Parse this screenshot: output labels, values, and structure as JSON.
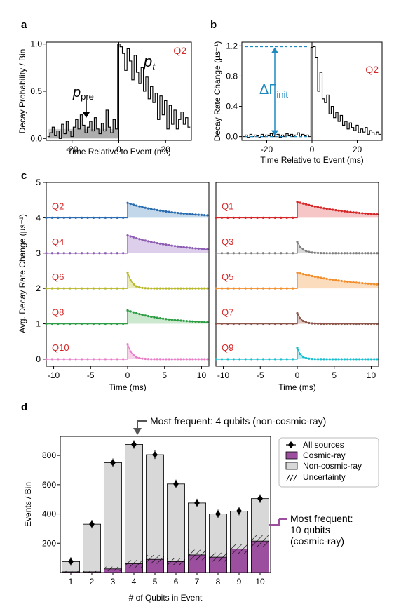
{
  "panel_labels": {
    "a": "a",
    "b": "b",
    "c": "c",
    "d": "d"
  },
  "chart_data": [
    {
      "panel": "a",
      "type": "step",
      "xlabel": "Time Relative to Event (ms)",
      "ylabel": "Decay Probability / Bin",
      "tag": "Q2",
      "xlim": [
        -31,
        31
      ],
      "ylim": [
        -0.02,
        1.02
      ],
      "xticks": [
        -20,
        0,
        20
      ],
      "yticks": [
        0.0,
        0.5,
        1.0
      ],
      "xticklabels": [
        "-20",
        "0",
        "20"
      ],
      "yticklabels": [
        "0.0",
        "0.5",
        "1.0"
      ],
      "annotations": {
        "p_pre": "p",
        "p_pre_sub": "pre",
        "p_t": "p",
        "p_t_sub": "t"
      },
      "p_pre_level": 0.1,
      "x": [
        -30,
        -29,
        -28,
        -27,
        -26,
        -25,
        -24,
        -23,
        -22,
        -21,
        -20,
        -19,
        -18,
        -17,
        -16,
        -15,
        -14,
        -13,
        -12,
        -11,
        -10,
        -9,
        -8,
        -7,
        -6,
        -5,
        -4,
        -3,
        -2,
        -1,
        0,
        1,
        2,
        3,
        4,
        5,
        6,
        7,
        8,
        9,
        10,
        11,
        12,
        13,
        14,
        15,
        16,
        17,
        18,
        19,
        20,
        21,
        22,
        23,
        24,
        25,
        26,
        27,
        28,
        29,
        30
      ],
      "values": [
        0.02,
        0.06,
        0.12,
        0.03,
        0.08,
        0.0,
        0.15,
        0.05,
        0.18,
        0.08,
        0.02,
        0.12,
        0.2,
        0.1,
        0.25,
        0.14,
        0.06,
        0.12,
        0.18,
        0.08,
        0.22,
        0.1,
        0.05,
        0.16,
        0.08,
        0.3,
        0.12,
        0.06,
        0.2,
        0.1,
        1.0,
        0.97,
        0.9,
        0.72,
        0.95,
        0.82,
        0.62,
        0.88,
        0.7,
        0.58,
        0.75,
        0.5,
        0.65,
        0.42,
        0.55,
        0.38,
        0.48,
        0.2,
        0.45,
        0.25,
        0.4,
        0.1,
        0.35,
        0.15,
        0.3,
        0.1,
        0.2,
        0.28,
        0.15,
        0.22,
        0.12
      ]
    },
    {
      "panel": "b",
      "type": "step",
      "xlabel": "Time Relative to Event (ms)",
      "ylabel": "Decay Rate Change (µs⁻¹)",
      "tag": "Q2",
      "xlim": [
        -31,
        31
      ],
      "ylim": [
        -0.05,
        1.25
      ],
      "xticks": [
        -20,
        0,
        20
      ],
      "yticks": [
        0.0,
        0.4,
        0.8,
        1.2
      ],
      "xticklabels": [
        "-20",
        "0",
        "20"
      ],
      "yticklabels": [
        "0.0",
        "0.4",
        "0.8",
        "1.2"
      ],
      "annotation": "ΔΓ",
      "annotation_sub": "init",
      "delta_gamma_init": 1.19,
      "x": [
        -30,
        -29,
        -28,
        -27,
        -26,
        -25,
        -24,
        -23,
        -22,
        -21,
        -20,
        -19,
        -18,
        -17,
        -16,
        -15,
        -14,
        -13,
        -12,
        -11,
        -10,
        -9,
        -8,
        -7,
        -6,
        -5,
        -4,
        -3,
        -2,
        -1,
        0,
        1,
        2,
        3,
        4,
        5,
        6,
        7,
        8,
        9,
        10,
        11,
        12,
        13,
        14,
        15,
        16,
        17,
        18,
        19,
        20,
        21,
        22,
        23,
        24,
        25,
        26,
        27,
        28,
        29,
        30
      ],
      "values": [
        0.0,
        0.02,
        -0.01,
        0.03,
        0.0,
        0.02,
        0.01,
        -0.01,
        0.03,
        0.0,
        0.02,
        0.01,
        0.04,
        0.0,
        0.02,
        0.03,
        -0.01,
        0.02,
        0.0,
        0.04,
        0.01,
        0.03,
        0.0,
        0.02,
        0.05,
        0.0,
        0.03,
        0.01,
        0.02,
        0.0,
        1.18,
        1.19,
        1.05,
        0.6,
        0.85,
        0.5,
        0.45,
        0.55,
        0.3,
        0.4,
        0.25,
        0.32,
        0.2,
        0.28,
        0.15,
        0.2,
        0.1,
        0.18,
        0.12,
        0.08,
        0.15,
        0.05,
        0.1,
        0.06,
        0.12,
        0.03,
        0.08,
        0.05,
        0.02,
        0.06,
        0.03
      ]
    },
    {
      "panel": "c",
      "type": "line",
      "ylabel": "Avg. Decay Rate Change (µs⁻¹)",
      "xlabel": "Time (ms)",
      "xlim": [
        -11,
        11
      ],
      "ylim": [
        -0.2,
        5
      ],
      "xticks": [
        -10,
        -5,
        0,
        5,
        10
      ],
      "yticks": [
        0,
        1,
        2,
        3,
        4,
        5
      ],
      "xticklabels": [
        "-10",
        "-5",
        "0",
        "5",
        "10"
      ],
      "yticklabels": [
        "0",
        "1",
        "2",
        "3",
        "4",
        "5"
      ],
      "subplots": [
        {
          "series": [
            {
              "name": "Q2",
              "offset": 4,
              "amplitude": 0.42,
              "tau_ms": 6.0,
              "color": "#2b6cb0",
              "fill": "#b3cde3"
            },
            {
              "name": "Q4",
              "offset": 3,
              "amplitude": 0.5,
              "tau_ms": 7.0,
              "color": "#8e5cb5",
              "fill": "#d4c3e6"
            },
            {
              "name": "Q6",
              "offset": 2,
              "amplitude": 0.45,
              "tau_ms": 0.6,
              "color": "#b8b82a",
              "fill": "#e6e6a8"
            },
            {
              "name": "Q8",
              "offset": 1,
              "amplitude": 0.38,
              "tau_ms": 5.0,
              "color": "#2e9e45",
              "fill": "#bfe3c4"
            },
            {
              "name": "Q10",
              "offset": 0,
              "amplitude": 0.42,
              "tau_ms": 0.6,
              "color": "#e87cc8",
              "fill": "#f6c9e6"
            }
          ]
        },
        {
          "series": [
            {
              "name": "Q1",
              "offset": 4,
              "amplitude": 0.45,
              "tau_ms": 7.0,
              "color": "#d62728",
              "fill": "#f4b6b6"
            },
            {
              "name": "Q3",
              "offset": 3,
              "amplitude": 0.32,
              "tau_ms": 0.7,
              "color": "#7f7f7f",
              "fill": "#d0d0d0"
            },
            {
              "name": "Q5",
              "offset": 2,
              "amplitude": 0.45,
              "tau_ms": 8.0,
              "color": "#f28e2b",
              "fill": "#fad3ad"
            },
            {
              "name": "Q7",
              "offset": 1,
              "amplitude": 0.3,
              "tau_ms": 0.6,
              "color": "#8c564b",
              "fill": "#d8b8b0"
            },
            {
              "name": "Q9",
              "offset": 0,
              "amplitude": 0.32,
              "tau_ms": 0.5,
              "color": "#17becf",
              "fill": "#a8e6ee"
            }
          ]
        }
      ]
    },
    {
      "panel": "d",
      "type": "bar",
      "xlabel": "# of Qubits in Event",
      "ylabel": "Events / Bin",
      "categories": [
        "1",
        "2",
        "3",
        "4",
        "5",
        "6",
        "7",
        "8",
        "9",
        "10"
      ],
      "ylim": [
        0,
        930
      ],
      "yticks": [
        200,
        400,
        600,
        800
      ],
      "yticklabels": [
        "200",
        "400",
        "600",
        "800"
      ],
      "series": [
        {
          "name": "All sources",
          "values": [
            75,
            330,
            750,
            875,
            805,
            605,
            475,
            400,
            420,
            505
          ]
        },
        {
          "name": "Cosmic-ray",
          "values": [
            5,
            5,
            25,
            60,
            90,
            75,
            120,
            105,
            160,
            215
          ]
        },
        {
          "name": "Non-cosmic-ray",
          "values": [
            70,
            325,
            725,
            815,
            715,
            530,
            355,
            295,
            260,
            290
          ]
        }
      ],
      "uncertainty": [
        5,
        5,
        15,
        25,
        30,
        25,
        35,
        30,
        35,
        40
      ],
      "legend": [
        "All sources",
        "Cosmic-ray",
        "Non-cosmic-ray",
        "Uncertainty"
      ],
      "legend_position": "top-right",
      "annotations": {
        "top": "Most frequent: 4 qubits (non-cosmic-ray)",
        "right_line1": "Most frequent:",
        "right_line2": "10 qubits",
        "right_line3": "(cosmic-ray)"
      },
      "colors": {
        "cosmic": "#9b4f9e",
        "noncosmic": "#d8d8d8",
        "annot_top": "#555555",
        "annot_right": "#9b4f9e"
      }
    }
  ]
}
